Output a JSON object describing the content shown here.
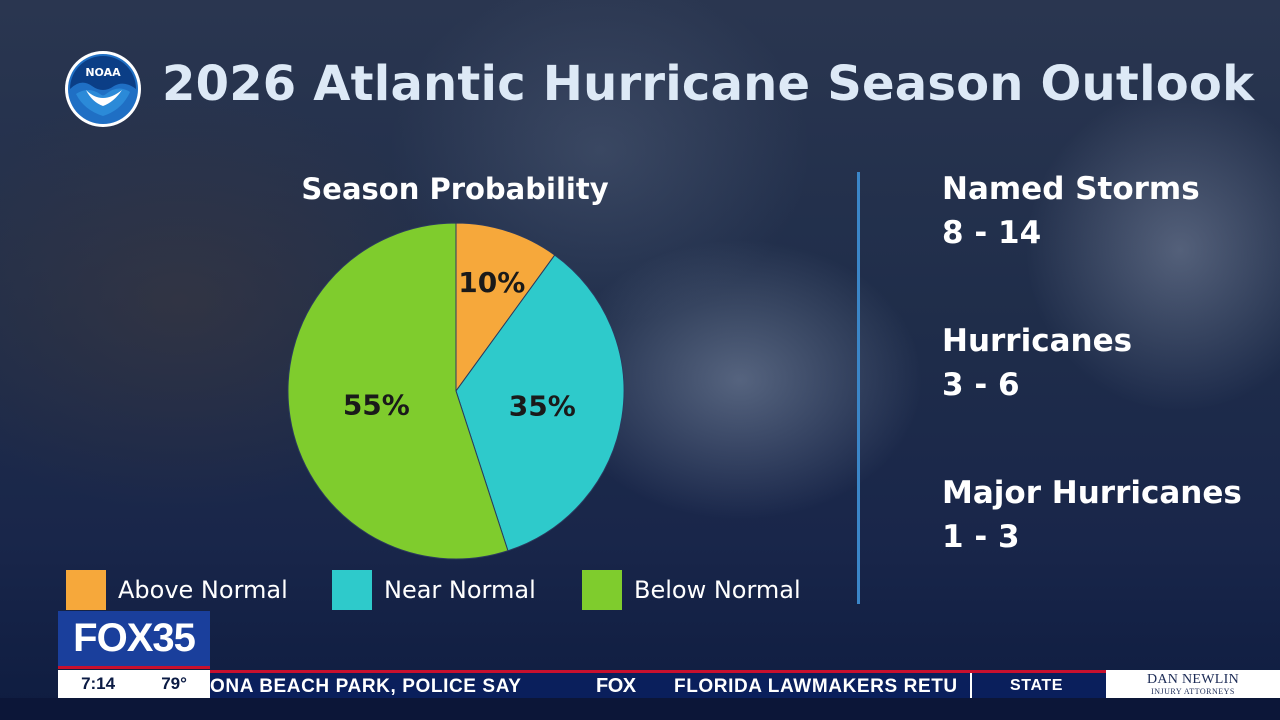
{
  "header": {
    "logo_text": "NOAA",
    "title": "2026 Atlantic Hurricane Season Outlook"
  },
  "chart_data": {
    "type": "pie",
    "title": "Season Probability",
    "categories": [
      "Above Normal",
      "Near Normal",
      "Below Normal"
    ],
    "values": [
      10,
      35,
      55
    ],
    "value_labels": [
      "10%",
      "35%",
      "55%"
    ],
    "colors": [
      "#f6a83b",
      "#2ecacb",
      "#7fcc2d"
    ],
    "start_angle_deg": 0,
    "direction": "clockwise",
    "legend_position": "bottom"
  },
  "stats": [
    {
      "label": "Named Storms",
      "value": "8 - 14"
    },
    {
      "label": "Hurricanes",
      "value": "3 - 6"
    },
    {
      "label": "Major Hurricanes",
      "value": "1 - 3"
    }
  ],
  "broadcast": {
    "channel_logo": "FOX35",
    "time": "7:14",
    "temperature": "79°",
    "ticker_a": "ONA BEACH PARK, POLICE SAY",
    "ticker_logo": "FOX",
    "ticker_b": "FLORIDA LAWMAKERS RETU",
    "ticker_state": "STATE",
    "sponsor_name": "DAN NEWLIN",
    "sponsor_sub": "INJURY ATTORNEYS"
  },
  "colors": {
    "title": "#dde9f6",
    "divider": "#3b86c8",
    "noaa_blue": "#1f6fc4",
    "fox_blue": "#1a3f9c",
    "ticker_red": "#c8102e"
  }
}
